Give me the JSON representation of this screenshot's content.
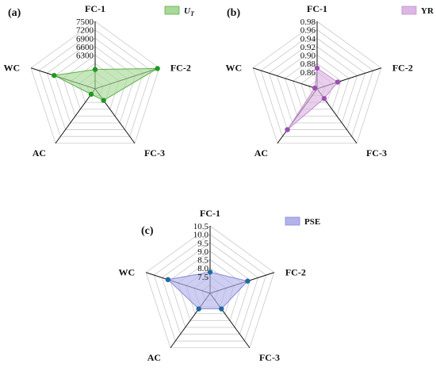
{
  "chart_data": [
    {
      "type": "radar",
      "panel_label": "(a)",
      "axes": [
        "FC-1",
        "FC-2",
        "FC-3",
        "AC",
        "WC"
      ],
      "tick_labels": [
        "6300",
        "6600",
        "6900",
        "7200",
        "7500"
      ],
      "range": [
        6000,
        7500
      ],
      "series": [
        {
          "name": "U",
          "name_sub": "T",
          "values": [
            6430,
            7460,
            6320,
            6150,
            6960
          ]
        }
      ],
      "colors": {
        "line": "#5db04c",
        "fill": "#a7d997",
        "marker": "#1f9a1f"
      },
      "legend_position": "top-right"
    },
    {
      "type": "radar",
      "panel_label": "(b)",
      "axes": [
        "FC-1",
        "FC-2",
        "FC-3",
        "AC",
        "WC"
      ],
      "tick_labels": [
        "0.86",
        "0.88",
        "0.90",
        "0.92",
        "0.94",
        "0.96",
        "0.98"
      ],
      "range": [
        0.84,
        0.98
      ],
      "series": [
        {
          "name": "YR",
          "values": [
            0.883,
            0.885,
            0.865,
            0.945,
            0.845
          ]
        }
      ],
      "colors": {
        "line": "#c38fd0",
        "fill": "#dcb7e4",
        "marker": "#9b4fb0"
      },
      "legend_position": "top-right"
    },
    {
      "type": "radar",
      "panel_label": "(c)",
      "axes": [
        "FC-1",
        "FC-2",
        "FC-3",
        "AC",
        "WC"
      ],
      "tick_labels": [
        "7.5",
        "8.0",
        "8.5",
        "9.0",
        "9.5",
        "10.0",
        "10.5"
      ],
      "range": [
        7.0,
        10.5
      ],
      "series": [
        {
          "name": "PSE",
          "values": [
            8.1,
            9.05,
            8.0,
            8.0,
            9.3
          ]
        }
      ],
      "colors": {
        "line": "#8a8ad8",
        "fill": "#b3b3ec",
        "marker": "#1f6aa0"
      },
      "legend_position": "top-right"
    }
  ]
}
